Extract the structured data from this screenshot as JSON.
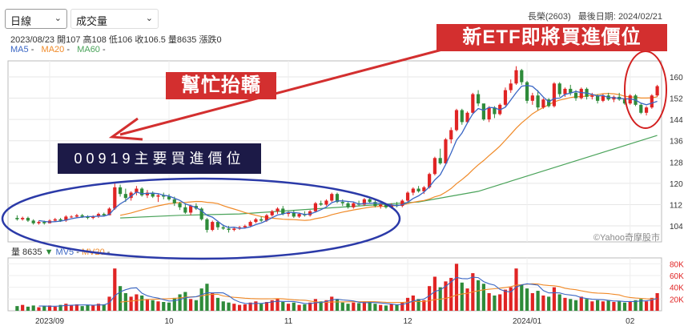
{
  "toolbar": {
    "period": "日線",
    "indicator": "成交量"
  },
  "stock_info": {
    "name_code": "長榮(2603)",
    "last_date_label": "最後日期:",
    "last_date": "2024/02/21"
  },
  "ohlc_line": "2023/08/23 開107 高108 低106 收106.5 量8635 漲跌0",
  "legend": {
    "ma5": "MA5",
    "ma20": "MA20",
    "ma60": "MA60",
    "dash": "-"
  },
  "volume_legend": {
    "label": "量 8635",
    "arrow": "▼",
    "ma5": "MV5",
    "ma20": "MV20",
    "dash": "-"
  },
  "annotations": {
    "etf": "新ETF即將買進價位",
    "help": "幫忙抬轎",
    "key": "00919主要買進價位"
  },
  "watermark": "©Yahoo奇摩股市",
  "colors": {
    "up": "#e02424",
    "down": "#2e8b3a",
    "ma5": "#3a66c4",
    "ma20": "#f08a28",
    "ma60": "#4aa35a",
    "annotation_red": "#d32f2f",
    "annotation_navy": "#1c1a47",
    "ellipse_blue": "#2b3aa8",
    "ellipse_red": "#d32020"
  },
  "chart_data": {
    "type": "candlestick",
    "y_ticks": [
      104,
      112,
      120,
      128,
      136,
      144,
      152,
      160
    ],
    "ylim": [
      98,
      166
    ],
    "x_labels": [
      "2023/09",
      "10",
      "11",
      "12",
      "2024/01",
      "02"
    ],
    "volume_ticks": [
      "20K",
      "40K",
      "60K",
      "80K"
    ],
    "volume_ylim": [
      0,
      90000
    ],
    "ohlc": [
      [
        107,
        108,
        106,
        106.5
      ],
      [
        106.5,
        107.5,
        106,
        107
      ],
      [
        107,
        107.5,
        105.5,
        106
      ],
      [
        106,
        106.5,
        104.5,
        105
      ],
      [
        105,
        106,
        104.5,
        105.5
      ],
      [
        105.5,
        106,
        104.5,
        105
      ],
      [
        105,
        106.5,
        105,
        106
      ],
      [
        106,
        107,
        105.5,
        106.5
      ],
      [
        106.5,
        107,
        105.5,
        106
      ],
      [
        106,
        108,
        105.5,
        107.5
      ],
      [
        107.5,
        108,
        107,
        107.5
      ],
      [
        107.5,
        108.5,
        107,
        108
      ],
      [
        108,
        108.5,
        107,
        107.5
      ],
      [
        107.5,
        108,
        106.5,
        107
      ],
      [
        107,
        108,
        106.5,
        107.5
      ],
      [
        107.5,
        109,
        107,
        108.5
      ],
      [
        108.5,
        109,
        107.5,
        108
      ],
      [
        108,
        111,
        108,
        110.5
      ],
      [
        110.5,
        120,
        110,
        118.5
      ],
      [
        118.5,
        119.5,
        115,
        116
      ],
      [
        116,
        118,
        113,
        114.5
      ],
      [
        114.5,
        117,
        113.5,
        116.5
      ],
      [
        116.5,
        119,
        115.5,
        118
      ],
      [
        118,
        118.5,
        115,
        115.5
      ],
      [
        115.5,
        117.5,
        114.5,
        116.5
      ],
      [
        116.5,
        117,
        114.5,
        115
      ],
      [
        115,
        116,
        113,
        115.5
      ],
      [
        115.5,
        116.5,
        114,
        115
      ],
      [
        115,
        116,
        113.5,
        114
      ],
      [
        114,
        115,
        111.5,
        112.5
      ],
      [
        112.5,
        113,
        110,
        111
      ],
      [
        111,
        112.5,
        108.5,
        109
      ],
      [
        109,
        112,
        108,
        111.5
      ],
      [
        111.5,
        112.5,
        110,
        110.5
      ],
      [
        110.5,
        111,
        106,
        106.5
      ],
      [
        106.5,
        107,
        101.5,
        102.5
      ],
      [
        102.5,
        106,
        102,
        105.5
      ],
      [
        105.5,
        106,
        102.5,
        103.5
      ],
      [
        103.5,
        104.5,
        102.5,
        103
      ],
      [
        103,
        104,
        101.5,
        102.5
      ],
      [
        102.5,
        103.5,
        102,
        103
      ],
      [
        103,
        104,
        102.5,
        103.5
      ],
      [
        103.5,
        104.5,
        103,
        104
      ],
      [
        104,
        106,
        103.5,
        105.5
      ],
      [
        105.5,
        107,
        105,
        106.5
      ],
      [
        106.5,
        107.5,
        105.5,
        106
      ],
      [
        106,
        108.5,
        105.5,
        108
      ],
      [
        108,
        110,
        107.5,
        109.5
      ],
      [
        109.5,
        111,
        108.5,
        110.5
      ],
      [
        110.5,
        111.5,
        108,
        108.5
      ],
      [
        108.5,
        109.5,
        107.5,
        109
      ],
      [
        109,
        110,
        107,
        107.5
      ],
      [
        107.5,
        109,
        107,
        108.5
      ],
      [
        108.5,
        109.5,
        107.5,
        108
      ],
      [
        108,
        110,
        107.5,
        109.5
      ],
      [
        109.5,
        113,
        109,
        112.5
      ],
      [
        112.5,
        113.5,
        111.5,
        112
      ],
      [
        112,
        114,
        111.5,
        113.5
      ],
      [
        113.5,
        116.5,
        113,
        116
      ],
      [
        116,
        116.5,
        112.5,
        113
      ],
      [
        113,
        114,
        111.5,
        112.5
      ],
      [
        112.5,
        113,
        110.5,
        111
      ],
      [
        111,
        113,
        110.5,
        112.5
      ],
      [
        112.5,
        113.5,
        111.5,
        112
      ],
      [
        112,
        114.5,
        111.5,
        114
      ],
      [
        114,
        115,
        112.5,
        113
      ],
      [
        113,
        113.5,
        111,
        111.5
      ],
      [
        111.5,
        112.5,
        110.5,
        112
      ],
      [
        112,
        112.5,
        110.5,
        111
      ],
      [
        111,
        112.5,
        110.5,
        112
      ],
      [
        112,
        113,
        111,
        111.5
      ],
      [
        111.5,
        114,
        111,
        113.5
      ],
      [
        113.5,
        117,
        113,
        116.5
      ],
      [
        116.5,
        118.5,
        115.5,
        118
      ],
      [
        118,
        119,
        116.5,
        117
      ],
      [
        117,
        119,
        116,
        118.5
      ],
      [
        118.5,
        124,
        118,
        123.5
      ],
      [
        123.5,
        130,
        123,
        129.5
      ],
      [
        129.5,
        133,
        127,
        127.5
      ],
      [
        127.5,
        137,
        127,
        136.5
      ],
      [
        136.5,
        141,
        135,
        140
      ],
      [
        140,
        148,
        139.5,
        147.5
      ],
      [
        147.5,
        148,
        142,
        143
      ],
      [
        143,
        147,
        142.5,
        146.5
      ],
      [
        146.5,
        154,
        146,
        153.5
      ],
      [
        153.5,
        155,
        149,
        150
      ],
      [
        150,
        149.5,
        143.5,
        144
      ],
      [
        144,
        149,
        143,
        148.5
      ],
      [
        148.5,
        149,
        144.5,
        146
      ],
      [
        146,
        150,
        145.5,
        149.5
      ],
      [
        149.5,
        156,
        149,
        155
      ],
      [
        155,
        159,
        154,
        157.5
      ],
      [
        157.5,
        164,
        157,
        162.5
      ],
      [
        162.5,
        163,
        157,
        158
      ],
      [
        158,
        158.5,
        150,
        151
      ],
      [
        151,
        154,
        149.5,
        153
      ],
      [
        153,
        155,
        147.5,
        148.5
      ],
      [
        148.5,
        152,
        148,
        151.5
      ],
      [
        151.5,
        152,
        148.5,
        149
      ],
      [
        149,
        158,
        148.5,
        157.5
      ],
      [
        157.5,
        158,
        152.5,
        153.5
      ],
      [
        153.5,
        156,
        152.5,
        155.5
      ],
      [
        155.5,
        157,
        153,
        154
      ],
      [
        154,
        155,
        151,
        152
      ],
      [
        152,
        156,
        151.5,
        155.5
      ],
      [
        155.5,
        156,
        151.5,
        152.5
      ],
      [
        152.5,
        154,
        151.5,
        153
      ],
      [
        153,
        153.5,
        150,
        151
      ],
      [
        151,
        153.5,
        150.5,
        153
      ],
      [
        153,
        154,
        151,
        151.5
      ],
      [
        151.5,
        153,
        150.5,
        152.5
      ],
      [
        152.5,
        154,
        151,
        151.5
      ],
      [
        151.5,
        152,
        149.5,
        150
      ],
      [
        150,
        153.5,
        149.5,
        153
      ],
      [
        153,
        153.5,
        149,
        149.5
      ],
      [
        149.5,
        150,
        146,
        146.5
      ],
      [
        146.5,
        149,
        145.5,
        148.5
      ],
      [
        148.5,
        153.5,
        148,
        153
      ],
      [
        153,
        157,
        152.5,
        156.5
      ]
    ],
    "volume": [
      8,
      10,
      7,
      9,
      6,
      8,
      9,
      7,
      10,
      12,
      9,
      11,
      8,
      10,
      9,
      12,
      11,
      24,
      72,
      42,
      30,
      24,
      28,
      26,
      20,
      18,
      16,
      15,
      14,
      22,
      28,
      32,
      20,
      18,
      38,
      46,
      30,
      22,
      16,
      14,
      12,
      10,
      11,
      14,
      16,
      12,
      15,
      18,
      20,
      15,
      12,
      14,
      10,
      11,
      14,
      20,
      16,
      18,
      24,
      20,
      14,
      12,
      14,
      13,
      16,
      15,
      12,
      10,
      9,
      11,
      10,
      14,
      22,
      26,
      20,
      18,
      42,
      58,
      40,
      50,
      56,
      80,
      48,
      38,
      64,
      52,
      46,
      30,
      26,
      28,
      36,
      40,
      72,
      44,
      38,
      30,
      34,
      26,
      24,
      40,
      28,
      22,
      20,
      18,
      24,
      20,
      16,
      18,
      16,
      18,
      15,
      16,
      14,
      16,
      18,
      20,
      16,
      22,
      30
    ],
    "ma60_points": [
      [
        103.5,
        107
      ],
      [
        110,
        108
      ],
      [
        111.5,
        108.5
      ],
      [
        117,
        110
      ],
      [
        119,
        111.5
      ],
      [
        121,
        113
      ],
      [
        122,
        117
      ],
      [
        123,
        124
      ],
      [
        124,
        131
      ],
      [
        125,
        138
      ]
    ]
  }
}
